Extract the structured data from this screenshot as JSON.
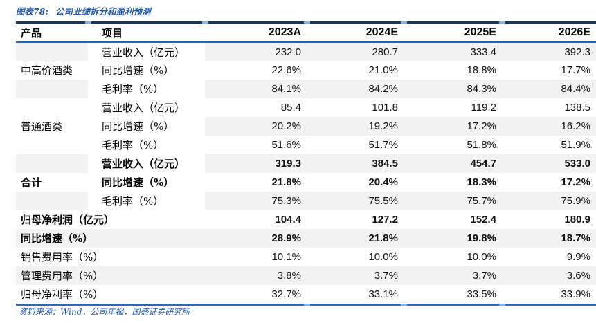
{
  "figure": {
    "number": "图表78:",
    "title": "公司业绩拆分和盈利预测"
  },
  "table": {
    "headers": {
      "product": "产品",
      "item": "项目",
      "years": [
        "2023A",
        "2024E",
        "2025E",
        "2026E"
      ]
    },
    "rows": [
      {
        "product": "",
        "item": "营业收入（亿元）",
        "values": [
          "232.0",
          "280.7",
          "333.4",
          "392.3"
        ],
        "shade": true,
        "bold": false,
        "span": false
      },
      {
        "product": "中高价酒类",
        "item": "同比增速（%）",
        "values": [
          "22.6%",
          "21.0%",
          "18.8%",
          "17.7%"
        ],
        "shade": false,
        "bold": false,
        "span": false
      },
      {
        "product": "",
        "item": "毛利率（%）",
        "values": [
          "84.1%",
          "84.2%",
          "84.3%",
          "84.4%"
        ],
        "shade": true,
        "bold": false,
        "span": false
      },
      {
        "product": "",
        "item": "营业收入（亿元）",
        "values": [
          "85.4",
          "101.8",
          "119.2",
          "138.5"
        ],
        "shade": false,
        "bold": false,
        "span": false
      },
      {
        "product": "普通酒类",
        "item": "同比增速（%）",
        "values": [
          "20.2%",
          "19.2%",
          "17.2%",
          "16.2%"
        ],
        "shade": true,
        "bold": false,
        "span": false
      },
      {
        "product": "",
        "item": "毛利率（%）",
        "values": [
          "51.6%",
          "51.7%",
          "51.8%",
          "51.9%"
        ],
        "shade": false,
        "bold": false,
        "span": false
      },
      {
        "product": "",
        "item": "营业收入（亿元）",
        "values": [
          "319.3",
          "384.5",
          "454.7",
          "533.0"
        ],
        "shade": true,
        "bold": true,
        "span": false
      },
      {
        "product": "合计",
        "item": "同比增速（%）",
        "values": [
          "21.8%",
          "20.4%",
          "18.3%",
          "17.2%"
        ],
        "shade": false,
        "bold": true,
        "span": false
      },
      {
        "product": "",
        "item": "毛利率（%）",
        "values": [
          "75.3%",
          "75.5%",
          "75.7%",
          "75.9%"
        ],
        "shade": true,
        "bold": false,
        "span": false
      },
      {
        "product": null,
        "item": "归母净利润（亿元）",
        "values": [
          "104.4",
          "127.2",
          "152.4",
          "180.9"
        ],
        "shade": false,
        "bold": true,
        "span": true
      },
      {
        "product": null,
        "item": "同比增速（%）",
        "values": [
          "28.9%",
          "21.8%",
          "19.8%",
          "18.7%"
        ],
        "shade": true,
        "bold": true,
        "span": true
      },
      {
        "product": null,
        "item": "销售费用率（%）",
        "values": [
          "10.1%",
          "10.0%",
          "10.0%",
          "9.9%"
        ],
        "shade": false,
        "bold": false,
        "span": true
      },
      {
        "product": null,
        "item": "管理费用率（%）",
        "values": [
          "3.8%",
          "3.7%",
          "3.7%",
          "3.6%"
        ],
        "shade": true,
        "bold": false,
        "span": true
      },
      {
        "product": null,
        "item": "归母净利率（%）",
        "values": [
          "32.7%",
          "33.1%",
          "33.5%",
          "33.9%"
        ],
        "shade": false,
        "bold": false,
        "span": true
      }
    ]
  },
  "source_note": "资料来源：Wind，公司年报，国盛证券研究所",
  "colors": {
    "top_border": "#17375E",
    "header_rule": "#2565AE",
    "bottom_border": "#3665AE",
    "column_tick": "#8DB4E2",
    "row_stripe": "#F2F2F2",
    "title_blue": "#2456A4"
  }
}
